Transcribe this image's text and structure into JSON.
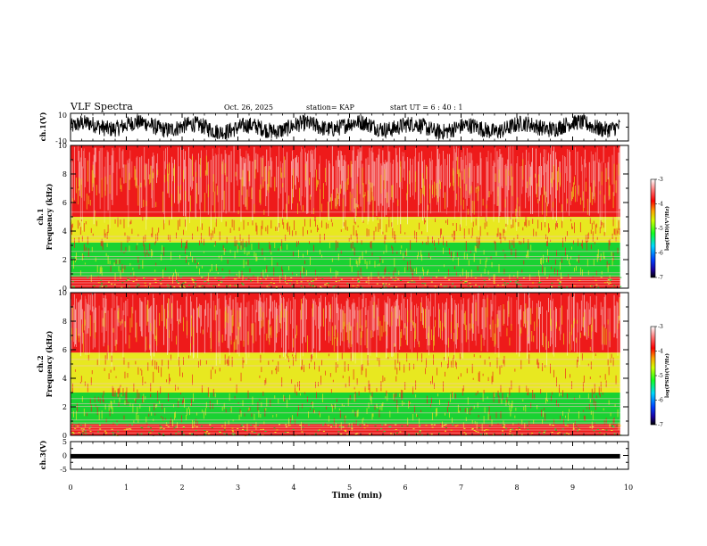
{
  "header": {
    "title": "VLF Spectra",
    "date": "Oct. 26, 2025",
    "station": "station= KAP",
    "start": "start  UT  =   6  : 40 : 1"
  },
  "colors": {
    "spec_low": "#19d232",
    "spec_mid": "#e8e820",
    "spec_high": "#ee1a1a",
    "spec_white": "#ffffff",
    "waveform": "#000000"
  },
  "chart_data": [
    {
      "type": "line",
      "name": "ch1-waveform",
      "ylabel": "ch.1(V)",
      "ylim": [
        -10,
        10
      ],
      "yticks": [
        -10,
        10
      ],
      "x_range_min": [
        0,
        9.85
      ],
      "description_values": {
        "mean": 0,
        "amplitude": 6
      }
    },
    {
      "type": "heatmap",
      "name": "ch1-spectrogram",
      "ylabel": "ch.1\nFrequency  (kHz)",
      "ylim": [
        0,
        10
      ],
      "yticks": [
        0,
        2,
        4,
        6,
        8,
        10
      ],
      "colorbar": {
        "label": "log(PSD)(V²/Hz)",
        "range": [
          -7,
          -3
        ],
        "ticks": [
          -7,
          -6,
          -5,
          -4,
          -3
        ]
      },
      "bands": [
        {
          "from": 0,
          "to": 0.8,
          "level": "mixed"
        },
        {
          "from": 0.8,
          "to": 3.2,
          "level": "green"
        },
        {
          "from": 3.2,
          "to": 5.0,
          "level": "yellow"
        },
        {
          "from": 5.0,
          "to": 10,
          "level": "red"
        }
      ]
    },
    {
      "type": "heatmap",
      "name": "ch2-spectrogram",
      "ylabel": "ch.2\nFrequency  (kHz)",
      "ylim": [
        0,
        10
      ],
      "yticks": [
        0,
        2,
        4,
        6,
        8,
        10
      ],
      "colorbar": {
        "label": "log(PSD)(V²/Hz)",
        "range": [
          -7,
          -3
        ],
        "ticks": [
          -7,
          -6,
          -5,
          -4,
          -3
        ]
      },
      "bands": [
        {
          "from": 0,
          "to": 0.8,
          "level": "mixed"
        },
        {
          "from": 0.8,
          "to": 3.0,
          "level": "green"
        },
        {
          "from": 3.0,
          "to": 5.8,
          "level": "yellow"
        },
        {
          "from": 5.8,
          "to": 10,
          "level": "red"
        }
      ]
    },
    {
      "type": "line",
      "name": "ch3-waveform",
      "ylabel": "ch.3(V)",
      "ylim": [
        -5,
        5
      ],
      "yticks": [
        -5,
        0,
        5
      ],
      "value": -0.3
    }
  ],
  "xaxis": {
    "label": "Time  (min)",
    "range": [
      0,
      10
    ],
    "ticks": [
      "0",
      "1",
      "2",
      "3",
      "4",
      "5",
      "6",
      "7",
      "8",
      "9",
      "10"
    ],
    "data_end": 9.85
  }
}
